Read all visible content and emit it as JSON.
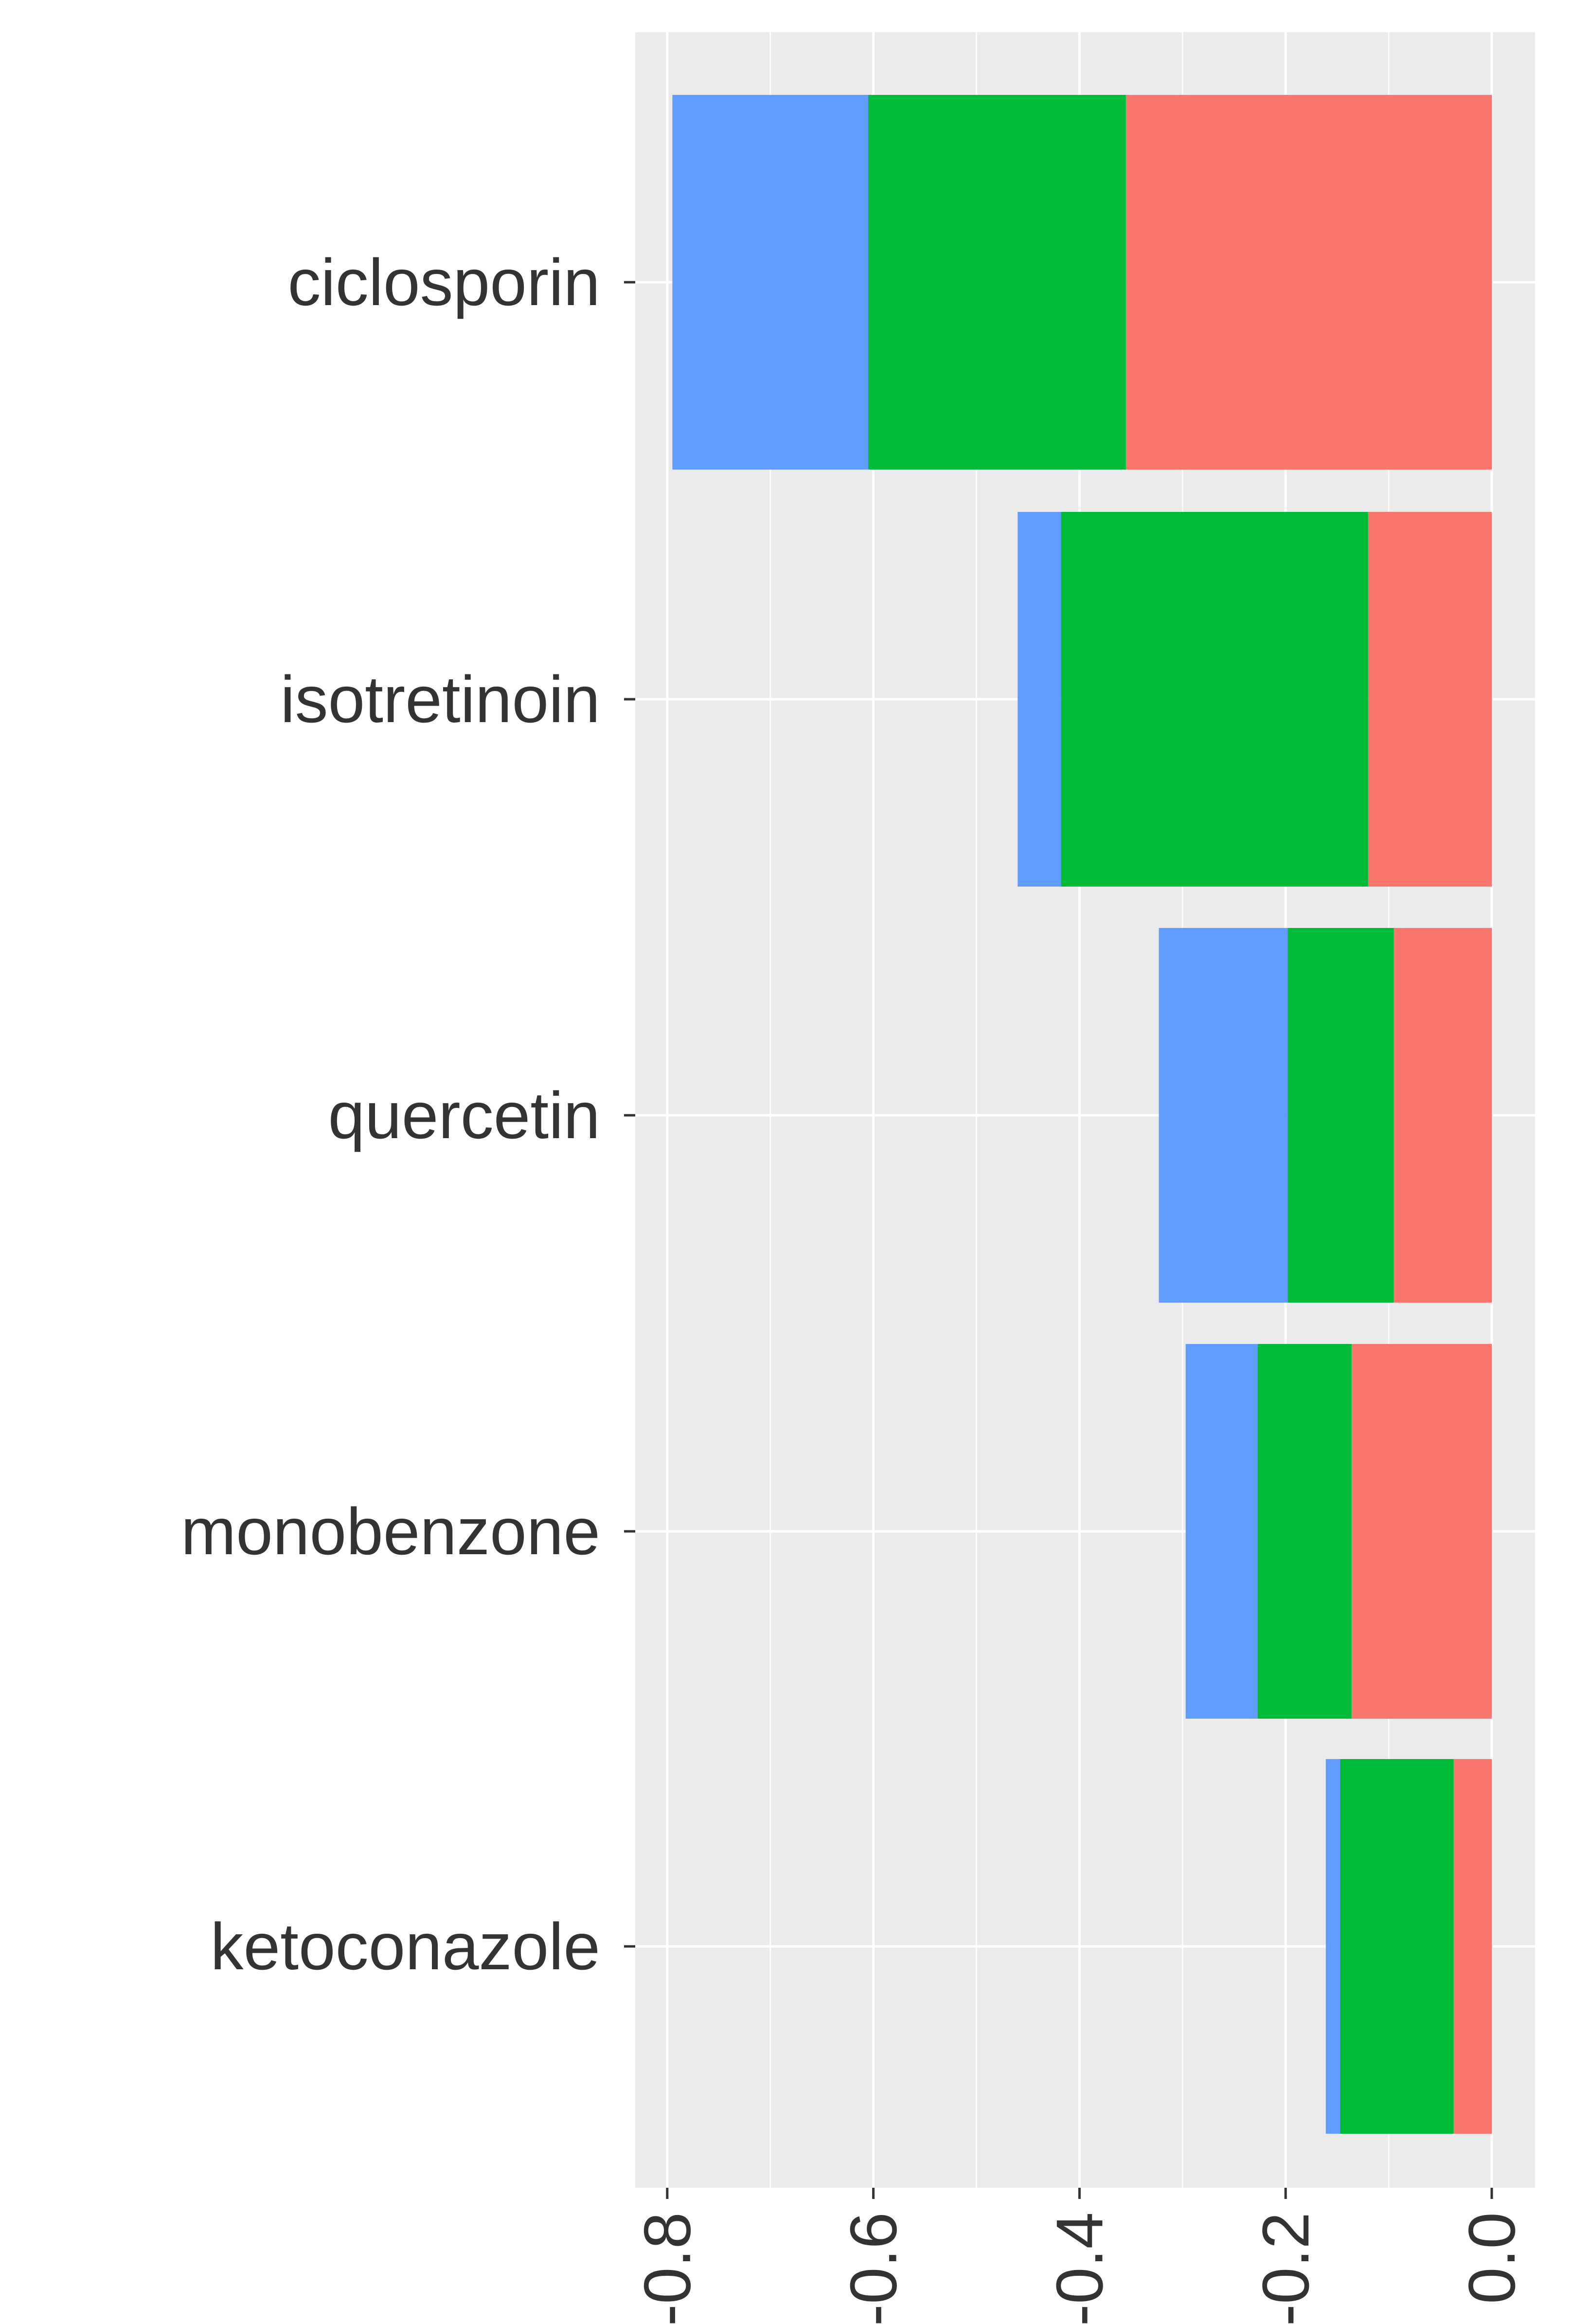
{
  "chart_data": {
    "type": "bar",
    "orientation": "horizontal",
    "stacked": true,
    "categories": [
      "ciclosporin",
      "isotretinoin",
      "quercetin",
      "monobenzone",
      "ketoconazole"
    ],
    "series": [
      {
        "color": "#F8766D",
        "values": [
          -0.355,
          -0.12,
          -0.095,
          -0.136,
          -0.037
        ]
      },
      {
        "color": "#00BA38",
        "values": [
          -0.25,
          -0.298,
          -0.103,
          -0.091,
          -0.11
        ]
      },
      {
        "color": "#619CFF",
        "values": [
          -0.19,
          -0.042,
          -0.125,
          -0.07,
          -0.014
        ]
      }
    ],
    "x_ticks": [
      "-0.8",
      "-0.6",
      "-0.4",
      "-0.2",
      "0.0"
    ],
    "x_tick_values": [
      -0.8,
      -0.6,
      -0.4,
      -0.2,
      0.0
    ],
    "xlim": [
      -0.83,
      0.04
    ],
    "title": "",
    "xlabel": "",
    "ylabel": "",
    "grid": true,
    "panel_background": "#EBEBEB",
    "grid_color": "#FFFFFF",
    "legend": "none"
  }
}
